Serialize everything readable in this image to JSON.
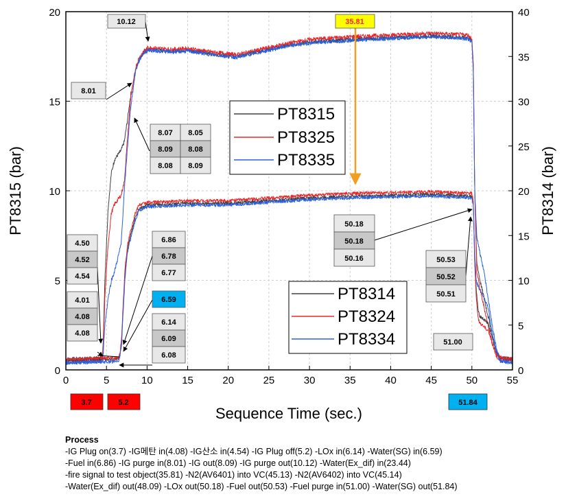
{
  "chart_data": {
    "type": "line",
    "xlabel": "Sequence Time (sec.)",
    "ylabel_left": "PT8315 (bar)",
    "ylabel_right": "PT8314 (bar)",
    "xlim": [
      0,
      55
    ],
    "ylim_left": [
      0,
      20
    ],
    "ylim_right": [
      0,
      40
    ],
    "x_ticks": [
      0,
      5,
      10,
      15,
      20,
      25,
      30,
      35,
      40,
      45,
      50,
      55
    ],
    "y_ticks_left": [
      0,
      5,
      10,
      15,
      20
    ],
    "y_ticks_right": [
      0,
      5,
      10,
      15,
      20,
      25,
      30,
      35,
      40
    ],
    "grid": true,
    "legends": [
      {
        "placement": "upper-center",
        "entries": [
          {
            "label": "PT8315",
            "color": "#404040"
          },
          {
            "label": "PT8325",
            "color": "#e8262a"
          },
          {
            "label": "PT8335",
            "color": "#2a5fe0"
          }
        ]
      },
      {
        "placement": "center-right",
        "entries": [
          {
            "label": "PT8314",
            "color": "#404040"
          },
          {
            "label": "PT8324",
            "color": "#e8262a"
          },
          {
            "label": "PT8334",
            "color": "#2a5fe0"
          }
        ]
      }
    ],
    "series": [
      {
        "name": "PT8315",
        "axis": "right",
        "color": "#404040",
        "points": [
          [
            0,
            1.2
          ],
          [
            4.2,
            1.3
          ],
          [
            4.5,
            1.6
          ],
          [
            4.6,
            3.0
          ],
          [
            4.8,
            10
          ],
          [
            5.2,
            18
          ],
          [
            5.6,
            22
          ],
          [
            6,
            23.5
          ],
          [
            6.8,
            24.5
          ],
          [
            7.2,
            25.5
          ],
          [
            7.6,
            28
          ],
          [
            8.0,
            30.8
          ],
          [
            8.3,
            32
          ],
          [
            8.6,
            33.5
          ],
          [
            9.0,
            34.5
          ],
          [
            9.5,
            35.4
          ],
          [
            10.12,
            35.8
          ],
          [
            13,
            35.6
          ],
          [
            15,
            35.7
          ],
          [
            18,
            35.3
          ],
          [
            21,
            35.0
          ],
          [
            24,
            35.6
          ],
          [
            27,
            36.2
          ],
          [
            30,
            36.6
          ],
          [
            35,
            36.9
          ],
          [
            40,
            37.1
          ],
          [
            45,
            37.3
          ],
          [
            49.5,
            37.1
          ],
          [
            50.0,
            36.8
          ],
          [
            50.18,
            34
          ],
          [
            50.35,
            20
          ],
          [
            50.6,
            12
          ],
          [
            51,
            10
          ],
          [
            51.5,
            8
          ],
          [
            52,
            6
          ],
          [
            52.5,
            4
          ],
          [
            53,
            2
          ],
          [
            53.5,
            1.3
          ],
          [
            55,
            1.2
          ]
        ]
      },
      {
        "name": "PT8325",
        "axis": "right",
        "color": "#e8262a",
        "points": [
          [
            0,
            1.0
          ],
          [
            4.2,
            1.1
          ],
          [
            4.5,
            1.4
          ],
          [
            4.6,
            2.5
          ],
          [
            4.8,
            8
          ],
          [
            5.2,
            14
          ],
          [
            5.6,
            17.5
          ],
          [
            6,
            18.5
          ],
          [
            6.8,
            19.5
          ],
          [
            7.2,
            21
          ],
          [
            7.6,
            26
          ],
          [
            8.0,
            30.6
          ],
          [
            8.3,
            32
          ],
          [
            8.6,
            33.8
          ],
          [
            9.0,
            34.8
          ],
          [
            9.5,
            35.5
          ],
          [
            10.12,
            36.0
          ],
          [
            13,
            35.8
          ],
          [
            15,
            35.9
          ],
          [
            18,
            35.5
          ],
          [
            21,
            35.2
          ],
          [
            24,
            35.8
          ],
          [
            27,
            36.4
          ],
          [
            30,
            36.9
          ],
          [
            35,
            37.2
          ],
          [
            40,
            37.4
          ],
          [
            45,
            37.6
          ],
          [
            49.5,
            37.4
          ],
          [
            50.0,
            37.0
          ],
          [
            50.18,
            34
          ],
          [
            50.35,
            20
          ],
          [
            50.6,
            11
          ],
          [
            51,
            9
          ],
          [
            51.5,
            7
          ],
          [
            52,
            5
          ],
          [
            52.5,
            3
          ],
          [
            53,
            1.5
          ],
          [
            53.5,
            1.0
          ],
          [
            55,
            1.0
          ]
        ]
      },
      {
        "name": "PT8335",
        "axis": "right",
        "color": "#2a5fe0",
        "points": [
          [
            0,
            0.8
          ],
          [
            4.2,
            0.9
          ],
          [
            4.5,
            1.2
          ],
          [
            4.6,
            2.0
          ],
          [
            4.8,
            5
          ],
          [
            5.2,
            8
          ],
          [
            5.6,
            10
          ],
          [
            6,
            11
          ],
          [
            6.8,
            14
          ],
          [
            7.2,
            20
          ],
          [
            7.6,
            25
          ],
          [
            8.0,
            29.5
          ],
          [
            8.3,
            31.5
          ],
          [
            8.6,
            33.5
          ],
          [
            9.0,
            34.5
          ],
          [
            9.5,
            35.3
          ],
          [
            10.12,
            35.7
          ],
          [
            13,
            35.5
          ],
          [
            15,
            35.6
          ],
          [
            18,
            35.2
          ],
          [
            21,
            34.9
          ],
          [
            24,
            35.5
          ],
          [
            27,
            36.1
          ],
          [
            30,
            36.5
          ],
          [
            35,
            36.8
          ],
          [
            40,
            37.0
          ],
          [
            45,
            37.2
          ],
          [
            49.5,
            37.0
          ],
          [
            50.0,
            36.6
          ],
          [
            50.18,
            33
          ],
          [
            50.35,
            20
          ],
          [
            50.6,
            15
          ],
          [
            51,
            13
          ],
          [
            51.5,
            11
          ],
          [
            52,
            8
          ],
          [
            52.5,
            5
          ],
          [
            53,
            2.5
          ],
          [
            53.5,
            1.0
          ],
          [
            55,
            0.8
          ]
        ]
      },
      {
        "name": "PT8314",
        "axis": "left",
        "color": "#404040",
        "points": [
          [
            0,
            0.55
          ],
          [
            4.0,
            0.6
          ],
          [
            4.5,
            0.6
          ],
          [
            5.0,
            0.6
          ],
          [
            6.0,
            0.6
          ],
          [
            6.5,
            0.65
          ],
          [
            6.59,
            0.7
          ],
          [
            6.7,
            1.0
          ],
          [
            6.86,
            1.5
          ],
          [
            7.0,
            3
          ],
          [
            7.3,
            5.5
          ],
          [
            7.6,
            6.8
          ],
          [
            8.0,
            7.5
          ],
          [
            8.5,
            8.5
          ],
          [
            9.0,
            9.0
          ],
          [
            10,
            9.2
          ],
          [
            15,
            9.3
          ],
          [
            20,
            9.3
          ],
          [
            25,
            9.45
          ],
          [
            30,
            9.6
          ],
          [
            35,
            9.7
          ],
          [
            40,
            9.75
          ],
          [
            45,
            9.8
          ],
          [
            50.0,
            9.7
          ],
          [
            50.18,
            9.3
          ],
          [
            50.35,
            6
          ],
          [
            50.53,
            4.5
          ],
          [
            50.8,
            3.2
          ],
          [
            51,
            3.0
          ],
          [
            51.5,
            2.8
          ],
          [
            52,
            2.6
          ],
          [
            52.5,
            1.8
          ],
          [
            53,
            1.0
          ],
          [
            53.5,
            0.7
          ],
          [
            55,
            0.6
          ]
        ]
      },
      {
        "name": "PT8324",
        "axis": "left",
        "color": "#e8262a",
        "points": [
          [
            0,
            0.6
          ],
          [
            4.0,
            0.65
          ],
          [
            4.5,
            0.65
          ],
          [
            5.0,
            0.65
          ],
          [
            6.0,
            0.65
          ],
          [
            6.5,
            0.7
          ],
          [
            6.59,
            0.8
          ],
          [
            6.7,
            1.1
          ],
          [
            6.86,
            1.7
          ],
          [
            7.0,
            3.2
          ],
          [
            7.3,
            5.8
          ],
          [
            7.6,
            7.0
          ],
          [
            8.0,
            7.8
          ],
          [
            8.5,
            8.7
          ],
          [
            9.0,
            9.2
          ],
          [
            10,
            9.35
          ],
          [
            15,
            9.45
          ],
          [
            20,
            9.45
          ],
          [
            25,
            9.6
          ],
          [
            30,
            9.75
          ],
          [
            35,
            9.85
          ],
          [
            40,
            9.9
          ],
          [
            45,
            9.95
          ],
          [
            50.0,
            9.85
          ],
          [
            50.18,
            9.4
          ],
          [
            50.35,
            6
          ],
          [
            50.53,
            4.0
          ],
          [
            50.8,
            2.8
          ],
          [
            51,
            2.6
          ],
          [
            51.5,
            2.4
          ],
          [
            52,
            2.2
          ],
          [
            52.5,
            1.5
          ],
          [
            53,
            0.9
          ],
          [
            53.5,
            0.7
          ],
          [
            55,
            0.6
          ]
        ]
      },
      {
        "name": "PT8334",
        "axis": "left",
        "color": "#2a5fe0",
        "points": [
          [
            0,
            0.4
          ],
          [
            4.0,
            0.45
          ],
          [
            4.5,
            0.45
          ],
          [
            5.0,
            0.45
          ],
          [
            6.0,
            0.45
          ],
          [
            6.5,
            0.5
          ],
          [
            6.59,
            0.6
          ],
          [
            6.7,
            0.9
          ],
          [
            6.86,
            1.4
          ],
          [
            7.0,
            2.8
          ],
          [
            7.3,
            5.2
          ],
          [
            7.6,
            6.6
          ],
          [
            8.0,
            7.4
          ],
          [
            8.5,
            8.3
          ],
          [
            9.0,
            8.9
          ],
          [
            10,
            9.1
          ],
          [
            15,
            9.2
          ],
          [
            20,
            9.2
          ],
          [
            25,
            9.35
          ],
          [
            30,
            9.5
          ],
          [
            35,
            9.6
          ],
          [
            40,
            9.65
          ],
          [
            45,
            9.7
          ],
          [
            50.0,
            9.6
          ],
          [
            50.18,
            9.2
          ],
          [
            50.35,
            6.5
          ],
          [
            50.53,
            5.0
          ],
          [
            50.8,
            4.6
          ],
          [
            51,
            4.5
          ],
          [
            51.5,
            4.0
          ],
          [
            52,
            3.5
          ],
          [
            52.5,
            2.0
          ],
          [
            53,
            1.0
          ],
          [
            53.5,
            0.5
          ],
          [
            55,
            0.4
          ]
        ]
      }
    ],
    "annotations": [
      {
        "text": "10.12",
        "x": 10.12,
        "y_left": 17.8,
        "style": "gray"
      },
      {
        "text": "35.81",
        "x": 35.81,
        "y_left": 10.3,
        "style": "yellow"
      },
      {
        "text": "8.01",
        "x": 8.01,
        "y_left": 15.9,
        "style": "gray"
      },
      {
        "text": "50.18",
        "x": 50.18,
        "y_left": 9.4,
        "style": "gray"
      },
      {
        "text": "50.18",
        "x": 50.18,
        "y_left": 9.4,
        "style": "gray-dark"
      },
      {
        "text": "50.16",
        "x": 50.16,
        "y_left": 9.4,
        "style": "gray"
      },
      {
        "text": "50.53",
        "x": 50.53,
        "y_left": 8.9,
        "style": "gray"
      },
      {
        "text": "50.52",
        "x": 50.52,
        "y_left": 8.9,
        "style": "gray-dark"
      },
      {
        "text": "50.51",
        "x": 50.51,
        "y_left": 8.9,
        "style": "gray"
      },
      {
        "text": "51.00",
        "x": 51.0,
        "y_left": 1.3,
        "style": "gray"
      },
      {
        "text": "51.84",
        "x": 51.84,
        "style": "blue"
      },
      {
        "text": "3.7",
        "x": 3.7,
        "style": "red"
      },
      {
        "text": "5.2",
        "x": 5.2,
        "style": "red"
      }
    ],
    "annotation_grid": [
      "8.07",
      "8.05",
      "8.09",
      "8.08",
      "8.08",
      "8.09"
    ],
    "annotation_stack_a": [
      "4.50",
      "4.52",
      "4.54"
    ],
    "annotation_stack_b": [
      "4.01",
      "4.08",
      "4.08"
    ],
    "annotation_stack_c": [
      "6.86",
      "6.78",
      "6.77"
    ],
    "annotation_blue": "6.59",
    "annotation_stack_d": [
      "6.14",
      "6.09",
      "6.08"
    ]
  },
  "process": {
    "title": "Process",
    "lines": [
      "-IG Plug on(3.7) -IG메탄 in(4.08) -IG산소 in(4.54) -IG Plug off(5.2) -LOx in(6.14) -Water(SG) in(6.59)",
      "-Fuel in(6.86) -IG purge in(8.01) -IG out(8.09) -IG purge out(10.12) -Water(Ex_dif) in(23.44)",
      "-fire signal to test object(35.81) -N2(AV6401) into VC(45.13) -N2(AV6402) into VC(45.14)",
      "-Water(Ex_dif) out(48.09) -LOx out(50.18) -Fuel out(50.53) -Fuel purge in(51.00) -Water(SG) out(51.84)"
    ]
  }
}
